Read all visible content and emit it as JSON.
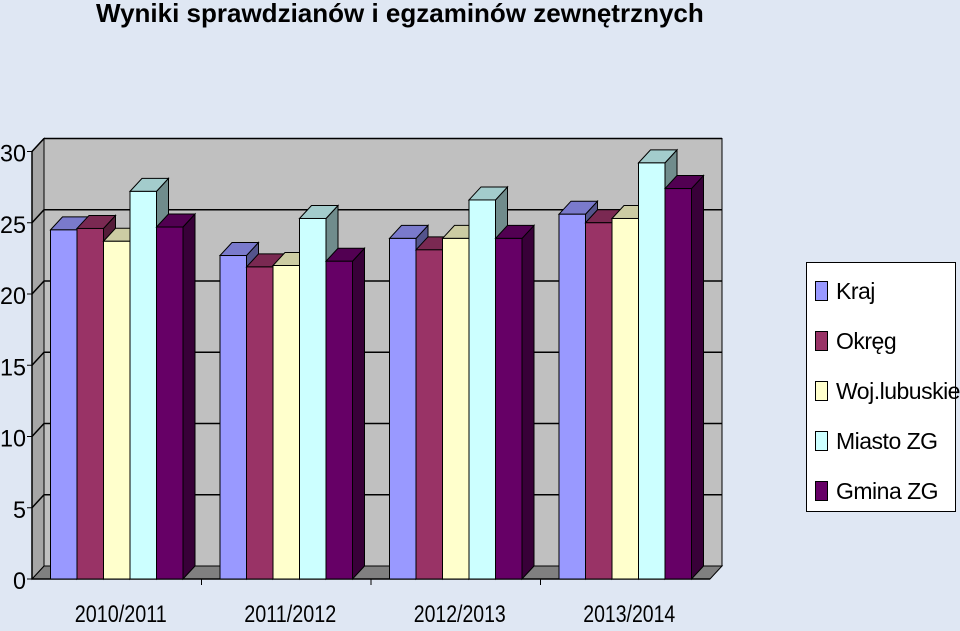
{
  "chart_data": {
    "type": "bar",
    "title": "Wyniki sprawdzianów i egzaminów zewnętrznych",
    "categories": [
      "2010/2011",
      "2011/2012",
      "2012/2013",
      "2013/2014"
    ],
    "series": [
      {
        "name": "Kraj",
        "values": [
          24.5,
          22.7,
          23.9,
          25.6
        ],
        "color": "#9999ff"
      },
      {
        "name": "Okręg",
        "values": [
          24.6,
          21.9,
          23.1,
          25.0
        ],
        "color": "#993366"
      },
      {
        "name": "Woj.lubuskie",
        "values": [
          23.7,
          22.0,
          23.9,
          25.3
        ],
        "color": "#ffffcc"
      },
      {
        "name": "Miasto ZG",
        "values": [
          27.2,
          25.3,
          26.6,
          29.2
        ],
        "color": "#ccffff"
      },
      {
        "name": "Gmina ZG",
        "values": [
          24.7,
          22.3,
          23.9,
          27.4
        ],
        "color": "#660066"
      }
    ],
    "yticks": [
      0,
      5,
      10,
      15,
      20,
      25,
      30
    ],
    "ylim": [
      0,
      30
    ],
    "grid": true,
    "legend": "right",
    "style": "3d-clustered-column",
    "wall_color": "#c0c0c0",
    "background_color": "#dfe7f3"
  }
}
